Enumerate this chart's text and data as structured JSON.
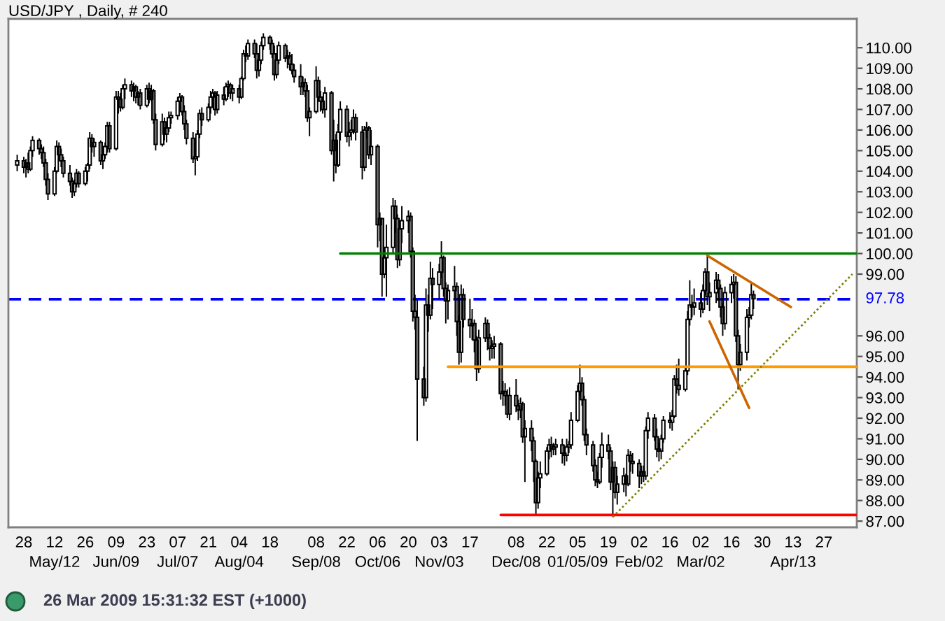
{
  "chart_data": {
    "type": "candlestick",
    "title": "USD/JPY , Daily, # 240",
    "color": "#000000",
    "x": [
      "2008-04-25",
      "2008-04-28",
      "2008-04-29",
      "2008-04-30",
      "2008-05-01",
      "2008-05-02",
      "2008-05-05",
      "2008-05-06",
      "2008-05-07",
      "2008-05-08",
      "2008-05-09",
      "2008-05-12",
      "2008-05-13",
      "2008-05-14",
      "2008-05-15",
      "2008-05-16",
      "2008-05-19",
      "2008-05-20",
      "2008-05-21",
      "2008-05-22",
      "2008-05-23",
      "2008-05-26",
      "2008-05-27",
      "2008-05-28",
      "2008-05-29",
      "2008-05-30",
      "2008-06-02",
      "2008-06-03",
      "2008-06-04",
      "2008-06-05",
      "2008-06-06",
      "2008-06-09",
      "2008-06-10",
      "2008-06-11",
      "2008-06-12",
      "2008-06-13",
      "2008-06-16",
      "2008-06-17",
      "2008-06-18",
      "2008-06-19",
      "2008-06-20",
      "2008-06-23",
      "2008-06-24",
      "2008-06-25",
      "2008-06-26",
      "2008-06-27",
      "2008-06-30",
      "2008-07-01",
      "2008-07-02",
      "2008-07-03",
      "2008-07-04",
      "2008-07-07",
      "2008-07-08",
      "2008-07-09",
      "2008-07-10",
      "2008-07-11",
      "2008-07-14",
      "2008-07-15",
      "2008-07-16",
      "2008-07-17",
      "2008-07-18",
      "2008-07-21",
      "2008-07-22",
      "2008-07-23",
      "2008-07-24",
      "2008-07-25",
      "2008-07-28",
      "2008-07-29",
      "2008-07-30",
      "2008-07-31",
      "2008-08-01",
      "2008-08-04",
      "2008-08-05",
      "2008-08-06",
      "2008-08-07",
      "2008-08-08",
      "2008-08-11",
      "2008-08-12",
      "2008-08-13",
      "2008-08-14",
      "2008-08-15",
      "2008-08-18",
      "2008-08-19",
      "2008-08-20",
      "2008-08-21",
      "2008-08-22",
      "2008-08-25",
      "2008-08-26",
      "2008-08-27",
      "2008-08-28",
      "2008-08-29",
      "2008-09-01",
      "2008-09-02",
      "2008-09-03",
      "2008-09-04",
      "2008-09-05",
      "2008-09-08",
      "2008-09-09",
      "2008-09-10",
      "2008-09-11",
      "2008-09-12",
      "2008-09-15",
      "2008-09-16",
      "2008-09-17",
      "2008-09-18",
      "2008-09-19",
      "2008-09-22",
      "2008-09-23",
      "2008-09-24",
      "2008-09-25",
      "2008-09-26",
      "2008-09-29",
      "2008-09-30",
      "2008-10-01",
      "2008-10-02",
      "2008-10-03",
      "2008-10-06",
      "2008-10-07",
      "2008-10-08",
      "2008-10-09",
      "2008-10-10",
      "2008-10-13",
      "2008-10-14",
      "2008-10-15",
      "2008-10-16",
      "2008-10-17",
      "2008-10-20",
      "2008-10-21",
      "2008-10-22",
      "2008-10-23",
      "2008-10-24",
      "2008-10-27",
      "2008-10-28",
      "2008-10-29",
      "2008-10-30",
      "2008-10-31",
      "2008-11-03",
      "2008-11-04",
      "2008-11-05",
      "2008-11-06",
      "2008-11-07",
      "2008-11-10",
      "2008-11-11",
      "2008-11-12",
      "2008-11-13",
      "2008-11-14",
      "2008-11-17",
      "2008-11-18",
      "2008-11-19",
      "2008-11-20",
      "2008-11-21",
      "2008-11-24",
      "2008-11-25",
      "2008-11-26",
      "2008-11-27",
      "2008-11-28",
      "2008-12-01",
      "2008-12-02",
      "2008-12-03",
      "2008-12-04",
      "2008-12-05",
      "2008-12-08",
      "2008-12-09",
      "2008-12-10",
      "2008-12-11",
      "2008-12-12",
      "2008-12-15",
      "2008-12-16",
      "2008-12-17",
      "2008-12-18",
      "2008-12-19",
      "2008-12-22",
      "2008-12-23",
      "2008-12-24",
      "2008-12-25",
      "2008-12-26",
      "2008-12-29",
      "2008-12-30",
      "2008-12-31",
      "2009-01-01",
      "2009-01-02",
      "2009-01-05",
      "2009-01-06",
      "2009-01-07",
      "2009-01-08",
      "2009-01-09",
      "2009-01-12",
      "2009-01-13",
      "2009-01-14",
      "2009-01-15",
      "2009-01-16",
      "2009-01-19",
      "2009-01-20",
      "2009-01-21",
      "2009-01-22",
      "2009-01-23",
      "2009-01-26",
      "2009-01-27",
      "2009-01-28",
      "2009-01-29",
      "2009-01-30",
      "2009-02-02",
      "2009-02-03",
      "2009-02-04",
      "2009-02-05",
      "2009-02-06",
      "2009-02-09",
      "2009-02-10",
      "2009-02-11",
      "2009-02-12",
      "2009-02-13",
      "2009-02-16",
      "2009-02-17",
      "2009-02-18",
      "2009-02-19",
      "2009-02-20",
      "2009-02-23",
      "2009-02-24",
      "2009-02-25",
      "2009-02-26",
      "2009-02-27",
      "2009-03-02",
      "2009-03-03",
      "2009-03-04",
      "2009-03-05",
      "2009-03-06",
      "2009-03-09",
      "2009-03-10",
      "2009-03-11",
      "2009-03-12",
      "2009-03-13",
      "2009-03-16",
      "2009-03-17",
      "2009-03-18",
      "2009-03-19",
      "2009-03-20",
      "2009-03-23",
      "2009-03-24",
      "2009-03-25",
      "2009-03-26"
    ],
    "ohlc": [
      [
        104.3,
        104.8,
        104.0,
        104.5
      ],
      [
        104.5,
        104.7,
        103.9,
        104.2
      ],
      [
        104.2,
        104.6,
        103.7,
        104.4
      ],
      [
        104.4,
        104.9,
        103.9,
        104.1
      ],
      [
        104.1,
        105.2,
        104.0,
        105.0
      ],
      [
        105.0,
        105.7,
        104.7,
        105.5
      ],
      [
        105.5,
        105.6,
        104.8,
        105.1
      ],
      [
        105.1,
        105.3,
        104.6,
        104.9
      ],
      [
        104.9,
        105.2,
        104.2,
        104.4
      ],
      [
        104.4,
        104.6,
        103.3,
        103.6
      ],
      [
        103.6,
        103.9,
        102.6,
        102.9
      ],
      [
        102.9,
        104.2,
        102.8,
        104.0
      ],
      [
        104.0,
        105.5,
        103.9,
        105.2
      ],
      [
        105.2,
        105.4,
        104.5,
        104.8
      ],
      [
        104.8,
        105.1,
        104.2,
        104.5
      ],
      [
        104.5,
        104.7,
        103.7,
        103.9
      ],
      [
        103.9,
        104.3,
        103.3,
        103.5
      ],
      [
        103.5,
        103.7,
        102.7,
        103.0
      ],
      [
        103.0,
        103.6,
        102.8,
        103.4
      ],
      [
        103.4,
        104.1,
        103.2,
        103.9
      ],
      [
        103.9,
        104.0,
        103.2,
        103.4
      ],
      [
        103.4,
        104.2,
        103.3,
        104.0
      ],
      [
        104.0,
        104.4,
        103.5,
        104.3
      ],
      [
        104.3,
        105.9,
        104.1,
        105.6
      ],
      [
        105.6,
        105.8,
        104.9,
        105.2
      ],
      [
        105.2,
        105.6,
        104.7,
        105.4
      ],
      [
        105.4,
        105.5,
        104.3,
        104.5
      ],
      [
        104.5,
        105.0,
        104.1,
        104.8
      ],
      [
        104.8,
        105.4,
        104.6,
        105.2
      ],
      [
        105.2,
        106.4,
        104.9,
        106.2
      ],
      [
        106.2,
        106.4,
        104.9,
        105.1
      ],
      [
        105.1,
        107.9,
        105.0,
        107.6
      ],
      [
        107.6,
        107.9,
        106.8,
        107.5
      ],
      [
        107.5,
        107.8,
        106.9,
        107.1
      ],
      [
        107.1,
        108.2,
        107.0,
        108.0
      ],
      [
        108.0,
        108.5,
        107.5,
        108.2
      ],
      [
        108.2,
        108.4,
        107.6,
        107.9
      ],
      [
        107.9,
        108.3,
        107.4,
        108.1
      ],
      [
        108.1,
        108.2,
        107.3,
        107.6
      ],
      [
        107.6,
        107.9,
        107.2,
        107.8
      ],
      [
        107.8,
        108.0,
        107.0,
        107.2
      ],
      [
        107.2,
        108.2,
        107.1,
        108.0
      ],
      [
        108.0,
        108.3,
        107.3,
        107.5
      ],
      [
        107.5,
        108.2,
        107.4,
        107.9
      ],
      [
        107.9,
        108.0,
        106.3,
        106.5
      ],
      [
        106.5,
        106.8,
        105.0,
        105.3
      ],
      [
        105.3,
        106.8,
        105.2,
        106.4
      ],
      [
        106.4,
        106.6,
        105.5,
        105.8
      ],
      [
        105.8,
        106.3,
        105.4,
        106.1
      ],
      [
        106.1,
        106.9,
        105.9,
        106.6
      ],
      [
        106.6,
        106.9,
        106.3,
        106.7
      ],
      [
        106.7,
        107.6,
        106.5,
        107.4
      ],
      [
        107.4,
        107.8,
        106.9,
        107.6
      ],
      [
        107.6,
        107.7,
        106.7,
        106.9
      ],
      [
        106.9,
        107.2,
        106.0,
        106.3
      ],
      [
        106.3,
        106.5,
        105.3,
        105.6
      ],
      [
        105.6,
        105.9,
        104.4,
        104.6
      ],
      [
        104.6,
        105.0,
        103.8,
        104.7
      ],
      [
        104.7,
        106.0,
        104.5,
        105.8
      ],
      [
        105.8,
        107.0,
        105.6,
        106.8
      ],
      [
        106.8,
        107.1,
        106.2,
        106.5
      ],
      [
        106.5,
        107.3,
        106.4,
        107.1
      ],
      [
        107.1,
        107.9,
        106.8,
        107.6
      ],
      [
        107.6,
        108.0,
        107.3,
        107.8
      ],
      [
        107.8,
        107.9,
        106.7,
        107.0
      ],
      [
        107.0,
        107.9,
        106.8,
        107.7
      ],
      [
        107.7,
        108.1,
        107.2,
        107.5
      ],
      [
        107.5,
        108.3,
        107.4,
        108.1
      ],
      [
        108.1,
        108.4,
        107.6,
        108.2
      ],
      [
        108.2,
        108.3,
        107.5,
        107.8
      ],
      [
        107.8,
        108.2,
        107.4,
        108.0
      ],
      [
        108.0,
        108.2,
        107.3,
        107.6
      ],
      [
        107.6,
        108.6,
        107.5,
        108.5
      ],
      [
        108.5,
        109.9,
        108.4,
        109.7
      ],
      [
        109.7,
        110.1,
        109.3,
        109.6
      ],
      [
        109.6,
        110.4,
        109.4,
        110.2
      ],
      [
        110.2,
        110.4,
        109.5,
        109.7
      ],
      [
        109.7,
        110.2,
        108.5,
        108.9
      ],
      [
        108.9,
        109.6,
        108.6,
        109.4
      ],
      [
        109.4,
        110.3,
        109.2,
        110.1
      ],
      [
        110.1,
        110.7,
        109.9,
        110.5
      ],
      [
        110.5,
        110.6,
        109.9,
        110.2
      ],
      [
        110.2,
        110.4,
        109.5,
        109.7
      ],
      [
        109.7,
        110.1,
        108.4,
        108.7
      ],
      [
        108.7,
        109.6,
        108.5,
        109.4
      ],
      [
        109.4,
        110.3,
        109.2,
        110.1
      ],
      [
        110.1,
        110.2,
        109.3,
        109.5
      ],
      [
        109.5,
        109.9,
        109.0,
        109.6
      ],
      [
        109.6,
        109.8,
        108.9,
        109.2
      ],
      [
        109.2,
        109.7,
        108.7,
        108.9
      ],
      [
        108.9,
        109.2,
        108.3,
        108.6
      ],
      [
        108.6,
        109.2,
        107.7,
        108.1
      ],
      [
        108.1,
        108.6,
        107.7,
        108.3
      ],
      [
        108.3,
        108.5,
        107.6,
        107.9
      ],
      [
        107.9,
        108.2,
        106.4,
        106.6
      ],
      [
        106.6,
        107.1,
        105.7,
        106.9
      ],
      [
        106.9,
        109.1,
        106.8,
        108.4
      ],
      [
        108.4,
        108.6,
        107.4,
        107.6
      ],
      [
        107.6,
        107.9,
        106.9,
        107.4
      ],
      [
        107.4,
        107.6,
        106.8,
        107.0
      ],
      [
        107.0,
        108.1,
        106.6,
        107.8
      ],
      [
        107.8,
        107.9,
        104.8,
        105.0
      ],
      [
        105.0,
        106.5,
        103.5,
        105.5
      ],
      [
        105.5,
        105.8,
        103.9,
        104.3
      ],
      [
        104.3,
        106.3,
        104.2,
        105.9
      ],
      [
        105.9,
        107.4,
        105.5,
        107.0
      ],
      [
        107.0,
        107.2,
        105.4,
        105.7
      ],
      [
        105.7,
        106.4,
        105.2,
        105.9
      ],
      [
        105.9,
        106.5,
        105.5,
        106.0
      ],
      [
        106.0,
        107.0,
        105.8,
        106.6
      ],
      [
        106.6,
        106.8,
        105.5,
        105.9
      ],
      [
        105.9,
        106.2,
        103.6,
        104.2
      ],
      [
        104.2,
        106.2,
        104.0,
        106.0
      ],
      [
        106.0,
        106.4,
        105.6,
        106.1
      ],
      [
        106.1,
        106.2,
        104.6,
        104.8
      ],
      [
        104.8,
        106.0,
        104.3,
        105.2
      ],
      [
        105.2,
        105.3,
        100.3,
        101.4
      ],
      [
        101.4,
        102.0,
        100.6,
        101.7
      ],
      [
        101.7,
        101.7,
        97.9,
        99.0
      ],
      [
        99.0,
        100.1,
        98.8,
        99.8
      ],
      [
        99.8,
        101.4,
        97.9,
        100.3
      ],
      [
        100.3,
        102.7,
        100.0,
        102.3
      ],
      [
        102.3,
        102.6,
        101.0,
        101.7
      ],
      [
        101.7,
        101.9,
        99.3,
        99.7
      ],
      [
        99.7,
        101.6,
        99.4,
        101.2
      ],
      [
        101.2,
        102.3,
        100.5,
        101.6
      ],
      [
        101.6,
        102.1,
        101.0,
        101.8
      ],
      [
        101.8,
        102.0,
        99.8,
        100.1
      ],
      [
        100.1,
        100.3,
        96.7,
        97.2
      ],
      [
        97.2,
        98.0,
        96.3,
        96.9
      ],
      [
        96.9,
        97.8,
        90.9,
        93.9
      ],
      [
        93.9,
        94.5,
        92.6,
        93.0
      ],
      [
        93.0,
        98.3,
        92.8,
        97.5
      ],
      [
        97.5,
        98.0,
        96.2,
        97.0
      ],
      [
        97.0,
        99.6,
        96.8,
        98.8
      ],
      [
        98.8,
        99.3,
        97.3,
        98.5
      ],
      [
        98.5,
        99.5,
        97.8,
        99.1
      ],
      [
        99.1,
        100.6,
        98.8,
        99.8
      ],
      [
        99.8,
        99.9,
        97.9,
        98.3
      ],
      [
        98.3,
        98.6,
        96.6,
        97.7
      ],
      [
        97.7,
        98.5,
        96.8,
        98.2
      ],
      [
        98.2,
        99.4,
        97.8,
        98.4
      ],
      [
        98.4,
        98.6,
        96.0,
        96.7
      ],
      [
        96.7,
        97.0,
        94.6,
        95.2
      ],
      [
        95.2,
        98.5,
        94.7,
        98.0
      ],
      [
        98.0,
        98.3,
        96.4,
        96.8
      ],
      [
        96.8,
        97.8,
        95.9,
        96.5
      ],
      [
        96.5,
        97.3,
        95.8,
        96.6
      ],
      [
        96.6,
        96.8,
        95.2,
        95.8
      ],
      [
        95.8,
        96.0,
        93.8,
        94.4
      ],
      [
        94.4,
        96.3,
        94.2,
        95.9
      ],
      [
        95.9,
        96.9,
        95.7,
        96.6
      ],
      [
        96.6,
        96.8,
        95.3,
        95.9
      ],
      [
        95.9,
        96.1,
        94.8,
        95.4
      ],
      [
        95.4,
        95.8,
        94.9,
        95.5
      ],
      [
        95.5,
        96.0,
        94.9,
        95.6
      ],
      [
        95.6,
        95.7,
        92.9,
        93.2
      ],
      [
        93.2,
        93.8,
        92.6,
        93.3
      ],
      [
        93.3,
        93.7,
        92.6,
        93.1
      ],
      [
        93.1,
        93.4,
        92.0,
        92.2
      ],
      [
        92.2,
        93.5,
        91.9,
        93.1
      ],
      [
        93.1,
        93.9,
        92.3,
        92.6
      ],
      [
        92.6,
        92.9,
        91.9,
        92.4
      ],
      [
        92.4,
        93.0,
        92.0,
        92.7
      ],
      [
        92.7,
        92.8,
        90.8,
        91.1
      ],
      [
        91.1,
        91.9,
        88.9,
        91.5
      ],
      [
        91.5,
        91.9,
        90.4,
        90.9
      ],
      [
        90.9,
        91.1,
        88.9,
        89.9
      ],
      [
        89.9,
        90.0,
        87.3,
        87.9
      ],
      [
        87.9,
        89.4,
        87.6,
        89.1
      ],
      [
        89.1,
        89.9,
        88.6,
        89.3
      ],
      [
        89.3,
        90.6,
        89.2,
        90.4
      ],
      [
        90.4,
        91.0,
        90.0,
        90.7
      ],
      [
        90.7,
        91.1,
        90.1,
        90.5
      ],
      [
        90.5,
        90.8,
        90.2,
        90.6
      ],
      [
        90.6,
        91.0,
        90.2,
        90.7
      ],
      [
        90.7,
        91.0,
        89.8,
        90.3
      ],
      [
        90.3,
        90.7,
        89.7,
        90.2
      ],
      [
        90.2,
        91.0,
        89.9,
        90.6
      ],
      [
        90.6,
        90.9,
        90.3,
        90.7
      ],
      [
        90.7,
        92.3,
        90.5,
        91.9
      ],
      [
        91.9,
        93.6,
        91.8,
        93.3
      ],
      [
        93.3,
        94.6,
        93.1,
        93.7
      ],
      [
        93.7,
        94.0,
        92.6,
        92.9
      ],
      [
        92.9,
        93.1,
        90.9,
        91.2
      ],
      [
        91.2,
        91.5,
        90.2,
        90.7
      ],
      [
        90.7,
        90.9,
        89.4,
        89.7
      ],
      [
        89.7,
        90.0,
        88.7,
        89.0
      ],
      [
        89.0,
        89.4,
        88.6,
        88.9
      ],
      [
        88.9,
        90.3,
        88.8,
        90.1
      ],
      [
        90.1,
        91.3,
        89.6,
        90.7
      ],
      [
        90.7,
        91.2,
        90.0,
        90.4
      ],
      [
        90.4,
        90.6,
        88.5,
        88.9
      ],
      [
        88.9,
        89.9,
        87.2,
        89.6
      ],
      [
        89.6,
        89.9,
        88.1,
        88.4
      ],
      [
        88.4,
        89.2,
        87.8,
        88.8
      ],
      [
        88.8,
        89.6,
        88.4,
        89.2
      ],
      [
        89.2,
        89.3,
        88.2,
        88.8
      ],
      [
        88.8,
        90.5,
        88.7,
        90.2
      ],
      [
        90.2,
        90.4,
        89.4,
        89.9
      ],
      [
        89.9,
        90.3,
        89.3,
        89.8
      ],
      [
        89.8,
        90.0,
        88.6,
        89.2
      ],
      [
        89.2,
        89.7,
        88.8,
        89.4
      ],
      [
        89.4,
        89.7,
        88.9,
        89.2
      ],
      [
        89.2,
        91.6,
        89.0,
        91.4
      ],
      [
        91.4,
        92.3,
        91.0,
        92.0
      ],
      [
        92.0,
        92.2,
        90.9,
        91.1
      ],
      [
        91.1,
        91.5,
        90.1,
        90.5
      ],
      [
        90.5,
        90.8,
        89.9,
        90.4
      ],
      [
        90.4,
        91.2,
        90.0,
        91.0
      ],
      [
        91.0,
        92.1,
        90.8,
        91.9
      ],
      [
        91.9,
        92.3,
        91.5,
        91.8
      ],
      [
        91.8,
        92.4,
        91.4,
        92.1
      ],
      [
        92.1,
        94.1,
        92.0,
        93.9
      ],
      [
        93.9,
        94.6,
        93.2,
        93.6
      ],
      [
        93.6,
        94.9,
        93.1,
        93.4
      ],
      [
        93.4,
        94.5,
        93.3,
        94.3
      ],
      [
        94.3,
        97.2,
        94.1,
        96.8
      ],
      [
        96.8,
        98.7,
        96.5,
        97.5
      ],
      [
        97.5,
        98.0,
        96.9,
        97.4
      ],
      [
        97.4,
        98.3,
        97.0,
        97.6
      ],
      [
        97.6,
        98.1,
        96.9,
        97.3
      ],
      [
        97.3,
        98.5,
        97.1,
        98.2
      ],
      [
        98.2,
        99.3,
        98.0,
        99.1
      ],
      [
        99.1,
        99.9,
        97.5,
        97.9
      ],
      [
        97.9,
        98.6,
        97.2,
        98.1
      ],
      [
        98.1,
        99.1,
        97.6,
        98.7
      ],
      [
        98.7,
        99.0,
        97.7,
        98.3
      ],
      [
        98.3,
        98.5,
        96.9,
        97.4
      ],
      [
        97.4,
        97.6,
        96.0,
        96.6
      ],
      [
        96.6,
        98.4,
        96.3,
        98.1
      ],
      [
        98.1,
        98.9,
        97.6,
        98.5
      ],
      [
        98.5,
        99.0,
        97.8,
        98.6
      ],
      [
        98.6,
        98.9,
        95.7,
        96.0
      ],
      [
        96.0,
        96.3,
        93.4,
        94.6
      ],
      [
        94.6,
        95.6,
        94.3,
        95.2
      ],
      [
        95.2,
        97.3,
        94.8,
        96.9
      ],
      [
        96.9,
        97.4,
        96.4,
        97.0
      ],
      [
        97.0,
        98.6,
        96.8,
        98.0
      ],
      [
        98.0,
        98.2,
        97.3,
        97.8
      ]
    ],
    "series": [
      {
        "type": "line",
        "color": "#008000",
        "x": [
          "2008-09-19",
          "2009-05-12"
        ],
        "values": [
          100.0,
          100.0
        ]
      },
      {
        "type": "line",
        "color": "#ff9900",
        "x": [
          "2008-11-07",
          "2009-05-12"
        ],
        "values": [
          94.5,
          94.5
        ]
      },
      {
        "type": "line",
        "color": "#ff0000",
        "x": [
          "2008-12-01",
          "2009-05-12"
        ],
        "values": [
          87.3,
          87.3
        ]
      },
      {
        "type": "line",
        "color": "#808000",
        "line_style": "dotted",
        "x": [
          "2009-01-21",
          "2009-05-10"
        ],
        "values": [
          87.2,
          99.0
        ]
      },
      {
        "type": "line",
        "color": "#cc6600",
        "x": [
          "2009-03-05",
          "2009-04-12"
        ],
        "values": [
          99.9,
          97.4
        ]
      },
      {
        "type": "line",
        "color": "#cc6600",
        "x": [
          "2009-03-06",
          "2009-03-24"
        ],
        "values": [
          96.7,
          92.5
        ]
      }
    ],
    "ref_lines": [
      {
        "axis": "y",
        "value": 97.78,
        "label": "97.78",
        "color": "#0000ff",
        "line_style": "dashed"
      }
    ],
    "xlim": [
      "2008-04-21",
      "2009-05-12"
    ],
    "xticks": [
      {
        "value": "2008-04-28",
        "label": "28"
      },
      {
        "value": "2008-05-12",
        "label": "12\nMay/12"
      },
      {
        "value": "2008-05-26",
        "label": "26"
      },
      {
        "value": "2008-06-09",
        "label": "09\nJun/09"
      },
      {
        "value": "2008-06-23",
        "label": "23"
      },
      {
        "value": "2008-07-07",
        "label": "07\nJul/07"
      },
      {
        "value": "2008-07-21",
        "label": "21"
      },
      {
        "value": "2008-08-04",
        "label": "04\nAug/04"
      },
      {
        "value": "2008-08-18",
        "label": "18"
      },
      {
        "value": "2008-09-08",
        "label": "08\nSep/08"
      },
      {
        "value": "2008-09-22",
        "label": "22"
      },
      {
        "value": "2008-10-06",
        "label": "06\nOct/06"
      },
      {
        "value": "2008-10-20",
        "label": "20"
      },
      {
        "value": "2008-11-03",
        "label": "03\nNov/03"
      },
      {
        "value": "2008-11-17",
        "label": "17"
      },
      {
        "value": "2008-12-08",
        "label": "08\nDec/08"
      },
      {
        "value": "2008-12-22",
        "label": "22"
      },
      {
        "value": "2009-01-05",
        "label": "05\n01/05/09"
      },
      {
        "value": "2009-01-19",
        "label": "19"
      },
      {
        "value": "2009-02-02",
        "label": "02\nFeb/02"
      },
      {
        "value": "2009-02-16",
        "label": "16"
      },
      {
        "value": "2009-03-02",
        "label": "02\nMar/02"
      },
      {
        "value": "2009-03-16",
        "label": "16"
      },
      {
        "value": "2009-03-30",
        "label": "30"
      },
      {
        "value": "2009-04-13",
        "label": "13\nApr/13"
      },
      {
        "value": "2009-04-27",
        "label": "27"
      }
    ],
    "ylim": [
      86.7,
      111.4
    ],
    "yticks": [
      {
        "value": 87,
        "label": "87.00"
      },
      {
        "value": 88,
        "label": "88.00"
      },
      {
        "value": 89,
        "label": "89.00"
      },
      {
        "value": 90,
        "label": "90.00"
      },
      {
        "value": 91,
        "label": "91.00"
      },
      {
        "value": 92,
        "label": "92.00"
      },
      {
        "value": 93,
        "label": "93.00"
      },
      {
        "value": 94,
        "label": "94.00"
      },
      {
        "value": 95,
        "label": "95.00"
      },
      {
        "value": 96,
        "label": "96.00"
      },
      {
        "value": 99,
        "label": "99.00"
      },
      {
        "value": 100,
        "label": "100.00"
      },
      {
        "value": 101,
        "label": "101.00"
      },
      {
        "value": 102,
        "label": "102.00"
      },
      {
        "value": 103,
        "label": "103.00"
      },
      {
        "value": 104,
        "label": "104.00"
      },
      {
        "value": 105,
        "label": "105.00"
      },
      {
        "value": 106,
        "label": "106.00"
      },
      {
        "value": 107,
        "label": "107.00"
      },
      {
        "value": 108,
        "label": "108.00"
      },
      {
        "value": 109,
        "label": "109.00"
      },
      {
        "value": 110,
        "label": "110.00"
      }
    ],
    "annotations": [
      "26 Mar 2009 15:31:32 EST (+1000)"
    ]
  }
}
